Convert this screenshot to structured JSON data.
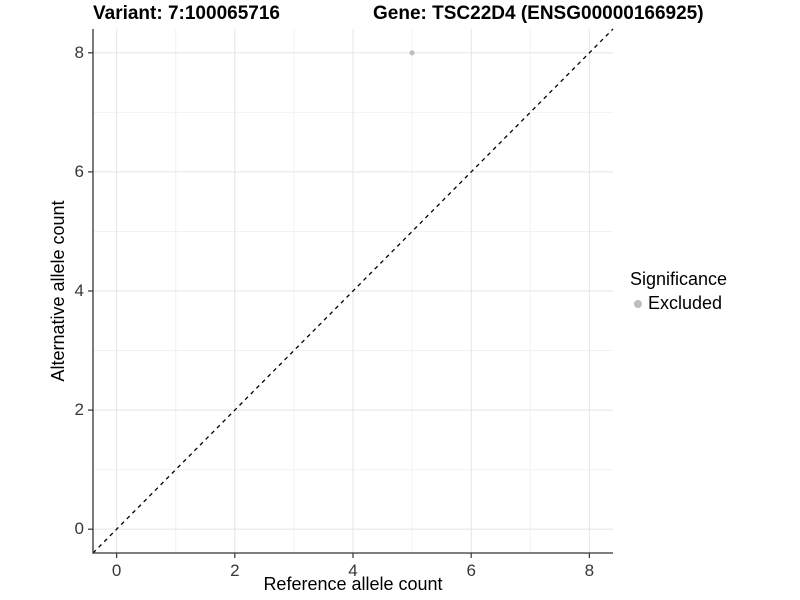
{
  "header": {
    "variant_title": "Variant: 7:100065716",
    "gene_title": "Gene: TSC22D4 (ENSG00000166925)"
  },
  "chart_data": {
    "type": "scatter",
    "title": "",
    "xlabel": "Reference allele count",
    "ylabel": "Alternative allele count",
    "xlim": [
      -0.4,
      8.4
    ],
    "ylim": [
      -0.4,
      8.4
    ],
    "x_major_ticks": [
      0,
      2,
      4,
      6,
      8
    ],
    "x_minor_ticks": [
      1,
      3,
      5,
      7
    ],
    "y_major_ticks": [
      0,
      2,
      4,
      6,
      8
    ],
    "y_minor_ticks": [
      1,
      3,
      5,
      7
    ],
    "grid": true,
    "identity_line": {
      "slope": 1,
      "intercept": 0,
      "style": "dashed",
      "color": "#000000"
    },
    "points": [
      {
        "x": 5,
        "y": 8,
        "significance": "Excluded",
        "color": "#bebebe"
      }
    ],
    "legend": {
      "title": "Significance",
      "position": "right",
      "items": [
        {
          "label": "Excluded",
          "color": "#bebebe"
        }
      ]
    },
    "colors": {
      "major_grid": "#e4e4e4",
      "minor_grid": "#f2f2f2",
      "axis_line": "#333333",
      "tick_label": "#383838",
      "point": "#bebebe",
      "background": "#ffffff"
    }
  }
}
